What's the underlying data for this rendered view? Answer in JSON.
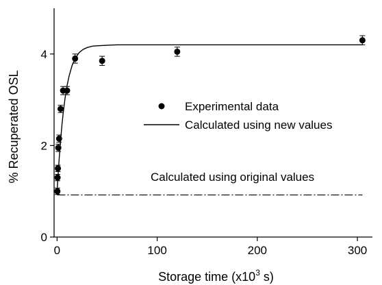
{
  "chart_data": {
    "type": "scatter",
    "xlabel": "Storage time (x10",
    "xlabel_sup": "3",
    "xlabel_suffix": " s)",
    "ylabel": "% Recuperated OSL",
    "xlim": [
      -3,
      315
    ],
    "ylim": [
      0,
      5
    ],
    "xticks": [
      0,
      100,
      200,
      300
    ],
    "yticks": [
      0,
      2,
      4
    ],
    "grid": false,
    "legend_position": "center-right",
    "colors": {
      "axis": "#000000",
      "series": "#000000"
    },
    "series": [
      {
        "name": "Experimental data",
        "kind": "points",
        "x": [
          0.3,
          0.5,
          0.8,
          1.2,
          2.0,
          3.5,
          6.0,
          10.0,
          18.0,
          45.0,
          120.0,
          305.0
        ],
        "y": [
          1.0,
          1.3,
          1.5,
          1.95,
          2.15,
          2.8,
          3.2,
          3.2,
          3.9,
          3.85,
          4.05,
          4.3
        ],
        "yerr": [
          0.07,
          0.07,
          0.07,
          0.08,
          0.08,
          0.08,
          0.09,
          0.09,
          0.1,
          0.1,
          0.1,
          0.1
        ]
      },
      {
        "name": "Calculated using new values",
        "kind": "line",
        "x": [
          0,
          1,
          2,
          3,
          4,
          5,
          6,
          8,
          10,
          12,
          15,
          18,
          22,
          26,
          30,
          35,
          40,
          50,
          60,
          80,
          100,
          150,
          200,
          250,
          305
        ],
        "y": [
          1.0,
          1.35,
          1.68,
          1.98,
          2.24,
          2.48,
          2.69,
          3.04,
          3.31,
          3.52,
          3.75,
          3.9,
          4.03,
          4.1,
          4.14,
          4.17,
          4.18,
          4.19,
          4.2,
          4.2,
          4.2,
          4.2,
          4.2,
          4.2,
          4.2
        ]
      },
      {
        "name": "Calculated using original values",
        "kind": "line-dashdot",
        "x": [
          0,
          305
        ],
        "y": [
          0.92,
          0.92
        ]
      }
    ],
    "annotations": [
      {
        "text": "Calculated using original values",
        "x": 52,
        "y": 1.33
      }
    ]
  }
}
